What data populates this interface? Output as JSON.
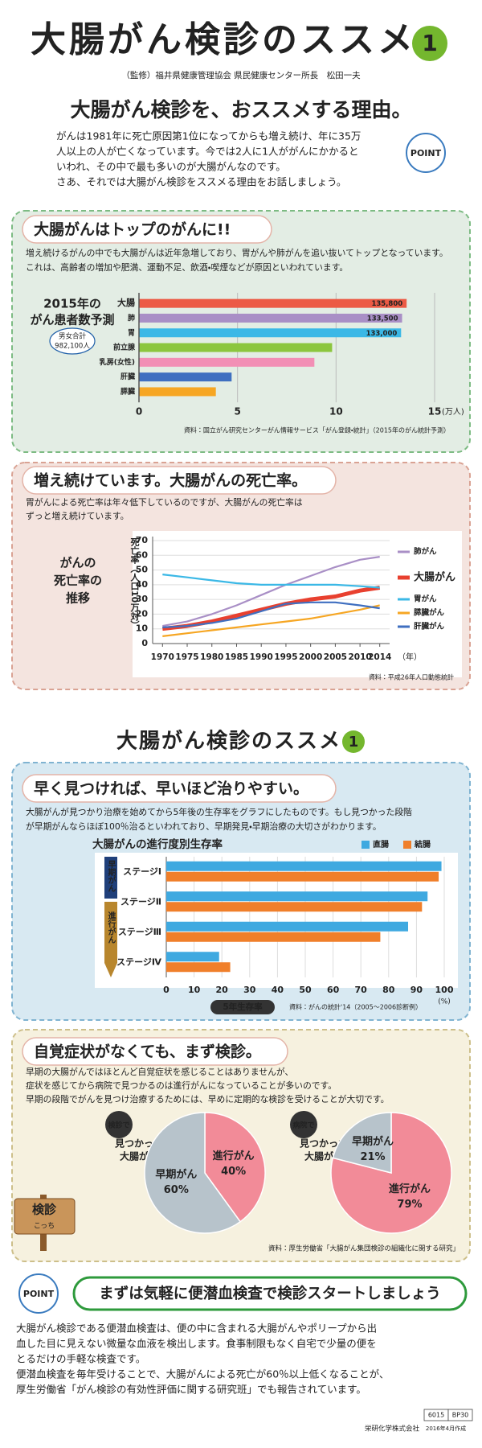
{
  "header": {
    "title": "大腸がん検診のススメ",
    "badge": "1",
    "supervisor": "（監修）福井県健康管理協会 県民健康センター所長　松田一夫"
  },
  "intro": {
    "heading": "大腸がん検診を、おススメする理由。",
    "point": "POINT",
    "lines": [
      "がんは1981年に死亡原因第1位になってからも増え続け、年に35万",
      "人以上の人が亡くなっています。今では2人に1人ががんにかかると",
      "いわれ、その中で最も多いのが大腸がんなのです。",
      "さあ、それでは大腸がん検診をススメる理由をお話しましょう。"
    ]
  },
  "sections": [
    {
      "heading": "大腸がんはトップのがんに!!",
      "lines": [
        "増え続けるがんの中でも大腸がんは近年急増しており、胃がんや肺がんを追い抜いてトップとなっています。",
        "これは、高齢者の増加や肥満、運動不足、飲酒・喫煙などが原因といわれています。"
      ]
    },
    {
      "heading": "増え続けています。大腸がんの死亡率。",
      "lines": [
        "胃がんによる死亡率は年々低下しているのですが、大腸がんの死亡率は",
        "ずっと増え続けています。"
      ]
    },
    {
      "heading": "早く見つければ、早いほど治りやすい。",
      "lines": [
        "大腸がんが見つかり治療を始めてから5年後の生存率をグラフにしたものです。もし見つかった段階",
        "が早期がんならほぼ100％治るといわれており、早期発見・早期治療の大切さがわかります。"
      ]
    },
    {
      "heading": "自覚症状がなくても、まず検診。",
      "lines": [
        "早期の大腸がんではほとんど自覚症状を感じることはありませんが、",
        "症状を感じてから病院で見つかるのは進行がんになっていることが多いのです。",
        "早期の段階でがんを見つけ治療するためには、早めに定期的な検診を受けることが大切です。"
      ],
      "source": "資料：厚生労働省「大腸がん集団検診の組織化に関する研究」"
    }
  ],
  "section2": {
    "title": "大腸がん検診のススメ",
    "badge": "1"
  },
  "sign": [
    "検診",
    "こっち"
  ],
  "cta": {
    "heading": "まずは気軽に便潜血検査で検診スタートしましょう",
    "point": "POINT",
    "lines": [
      "大腸がん検診である便潜血検査は、便の中に含まれる大腸がんやポリープから出",
      "血した目に見えない微量な血液を検出します。食事制限もなく自宅で少量の便を",
      "とるだけの手軽な検査です。",
      "便潜血検査を毎年受けることで、大腸がんによる死亡が60％以上低くなることが、",
      "厚生労働省「がん検診の有効性評価に関する研究班」でも報告されています。"
    ]
  },
  "footer": {
    "company": "栄研化学株式会社",
    "date": "2016年4月作成",
    "codes": [
      "6015",
      "BP30"
    ]
  },
  "chart_data": [
    {
      "type": "hbar",
      "title": [
        "2015年の",
        "がん患者数予測"
      ],
      "note": [
        "男女合計",
        "982,100人"
      ],
      "categories": [
        "大腸",
        "肺",
        "胃",
        "前立腺",
        "乳房(女性)",
        "肝臓",
        "膵臓"
      ],
      "values": [
        13.58,
        13.35,
        13.3,
        9.8,
        8.9,
        4.7,
        3.9
      ],
      "value_labels": [
        "135,800",
        "133,500",
        "133,000",
        null,
        null,
        null,
        null
      ],
      "colors": [
        "#ec5a45",
        "#a98fc6",
        "#3bb8e6",
        "#8cc63e",
        "#f28fb5",
        "#3f6fc0",
        "#f6a623"
      ],
      "xlim": [
        0,
        15
      ],
      "xticks": [
        0,
        5,
        10,
        15
      ],
      "x_unit": "(万人)",
      "grid": true,
      "source": "資料：国立がん研究センターがん情報サービス「がん登録・統計」（2015年のがん統計予測）"
    },
    {
      "type": "line",
      "title": [
        "がんの",
        "死亡率の",
        "推移"
      ],
      "y_label": "死亡率（人口10万対）",
      "x_unit": "（年）",
      "x": [
        1970,
        1975,
        1980,
        1985,
        1990,
        1995,
        2000,
        2005,
        2010,
        2014
      ],
      "series": [
        {
          "name": "肺がん",
          "color": "#a98fc6",
          "values": [
            12,
            15,
            20,
            26,
            33,
            40,
            46,
            52,
            57,
            59
          ]
        },
        {
          "name": "大腸がん",
          "color": "#e8402f",
          "values": [
            10,
            12,
            15,
            19,
            23,
            27,
            30,
            32,
            36,
            38
          ]
        },
        {
          "name": "胃がん",
          "color": "#3bb8e6",
          "values": [
            47,
            45,
            43,
            41,
            40,
            40,
            40,
            40,
            39,
            38
          ]
        },
        {
          "name": "膵臓がん",
          "color": "#f6a623",
          "values": [
            5,
            7,
            9,
            11,
            13,
            15,
            17,
            20,
            23,
            26
          ]
        },
        {
          "name": "肝臓がん",
          "color": "#3f6fc0",
          "values": [
            11,
            12,
            14,
            17,
            22,
            27,
            28,
            28,
            26,
            24
          ]
        }
      ],
      "xlim": [
        1968,
        2016
      ],
      "xticks": [
        1970,
        1975,
        1980,
        1985,
        1990,
        1995,
        2000,
        2005,
        2010,
        2014
      ],
      "ylim": [
        0,
        70
      ],
      "yticks": [
        0,
        10,
        20,
        30,
        40,
        50,
        60,
        70
      ],
      "grid": true,
      "source": "資料：平成26年人口動態統計"
    },
    {
      "type": "grouped_hbar",
      "title": "大腸がんの進行度別生存率",
      "categories": [
        "ステージⅠ",
        "ステージⅡ",
        "ステージⅢ",
        "ステージⅣ"
      ],
      "series": [
        {
          "name": "直腸",
          "color": "#3fa9e0",
          "values": [
            99,
            94,
            87,
            19
          ]
        },
        {
          "name": "結腸",
          "color": "#f07f2a",
          "values": [
            98,
            92,
            77,
            23
          ]
        }
      ],
      "groups": [
        "早期がん",
        "進行がん"
      ],
      "xlim": [
        0,
        100
      ],
      "xticks": [
        0,
        10,
        20,
        30,
        40,
        50,
        60,
        70,
        80,
        90,
        100
      ],
      "x_label": "5年生存率",
      "x_unit": "(%)",
      "grid": true,
      "source": "資料：がんの統計'14（2005〜2006診断例）"
    },
    {
      "type": "pie",
      "badge": "検診で",
      "title": [
        "見つかった",
        "大腸がん"
      ],
      "categories": [
        "早期がん",
        "進行がん"
      ],
      "values": [
        60,
        40
      ],
      "value_labels": [
        "60%",
        "40%"
      ],
      "colors": [
        "#b7c3cb",
        "#f28b98"
      ]
    },
    {
      "type": "pie",
      "badge": "病院で",
      "title": [
        "見つかった",
        "大腸がん"
      ],
      "categories": [
        "早期がん",
        "進行がん"
      ],
      "values": [
        21,
        79
      ],
      "value_labels": [
        "21%",
        "79%"
      ],
      "colors": [
        "#b7c3cb",
        "#f28b98"
      ]
    }
  ]
}
